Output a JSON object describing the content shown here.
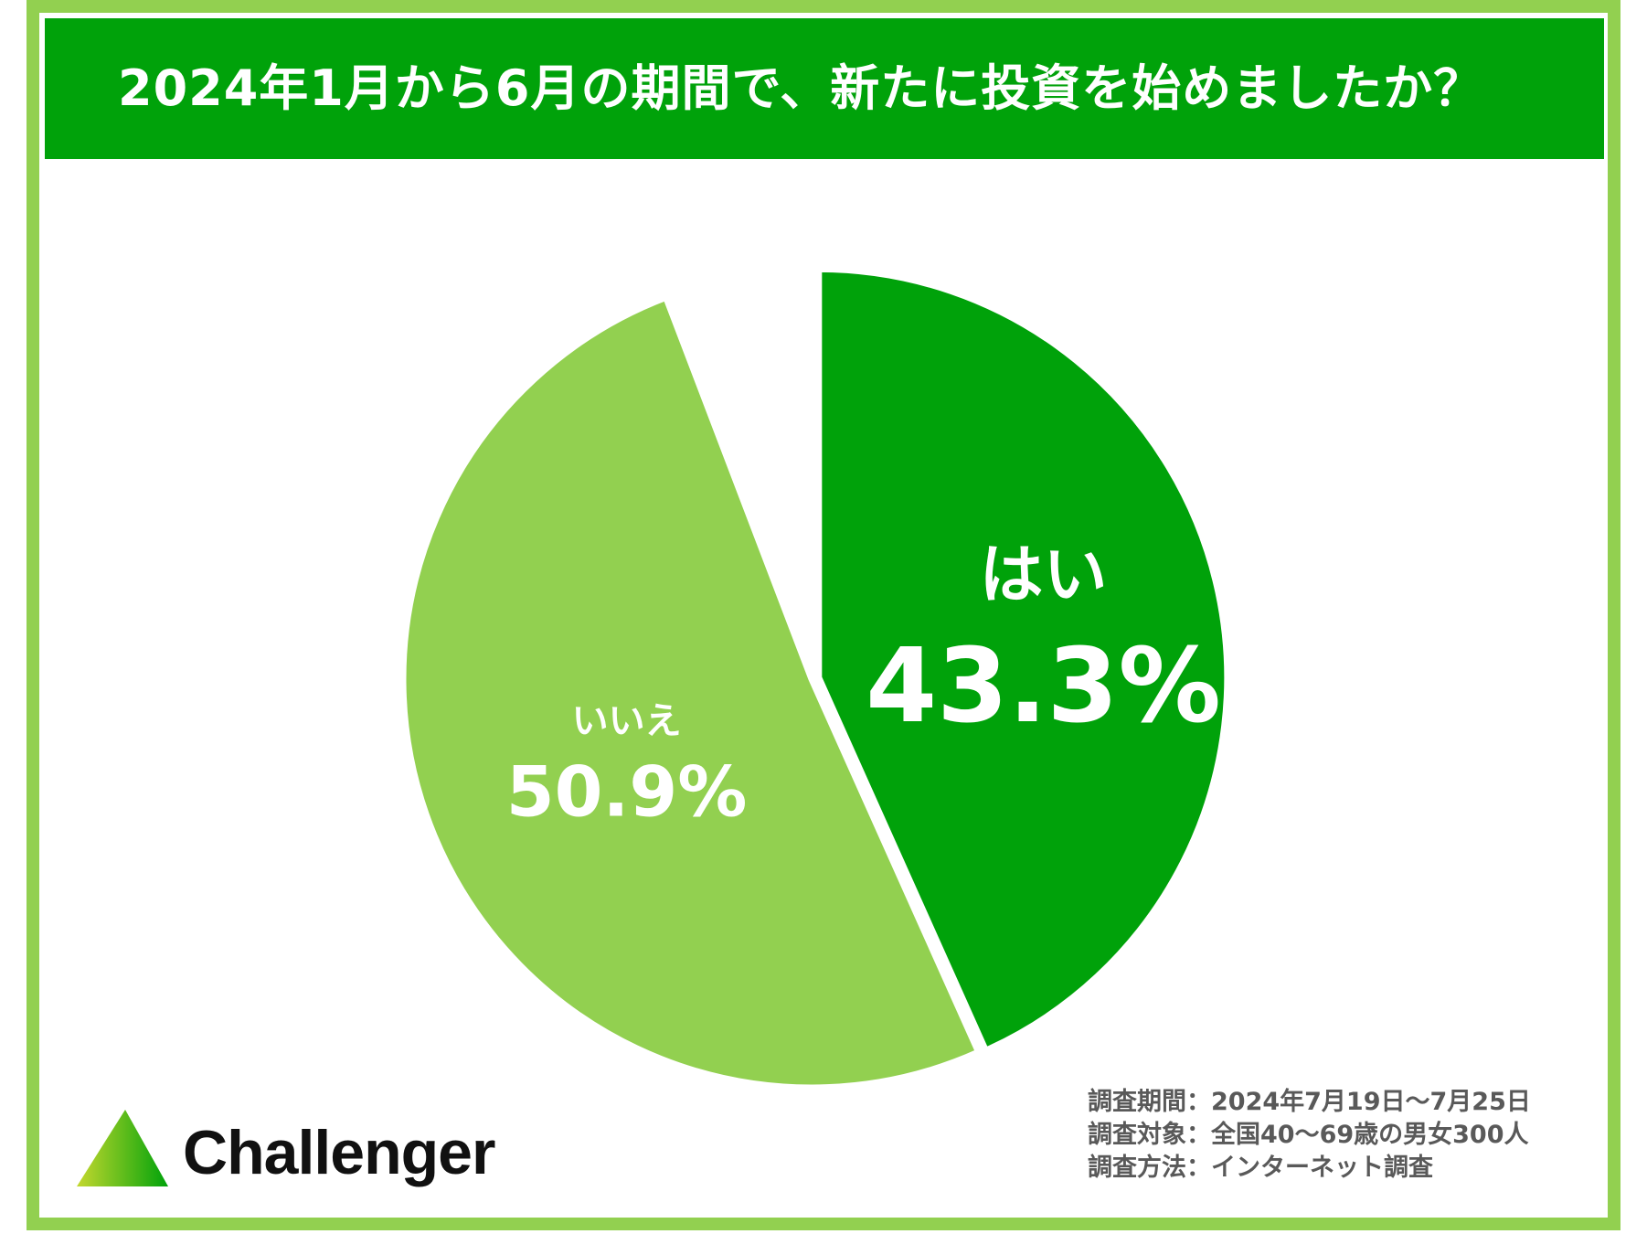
{
  "title": "2024年1月から6月の期間で、新たに投資を始めましたか？",
  "chart_data": {
    "type": "pie",
    "title": "2024年1月から6月の期間で、新たに投資を始めましたか？",
    "slices": [
      {
        "label": "はい",
        "value": 43.3,
        "display": "43.3%",
        "color": "#00a20a"
      },
      {
        "label": "いいえ",
        "value": 50.9,
        "display": "50.9%",
        "color": "#92d050"
      }
    ],
    "start": "12 o'clock",
    "direction": "clockwise",
    "legend": "none"
  },
  "survey": {
    "period": "調査期間：2024年7月19日～7月25日",
    "target": "調査対象：全国40～69歳の男女300人",
    "method": "調査方法：インターネット調査"
  },
  "logo": {
    "name": "Challenger",
    "colors": {
      "left": "#c4d82e",
      "right": "#00a20a"
    }
  }
}
